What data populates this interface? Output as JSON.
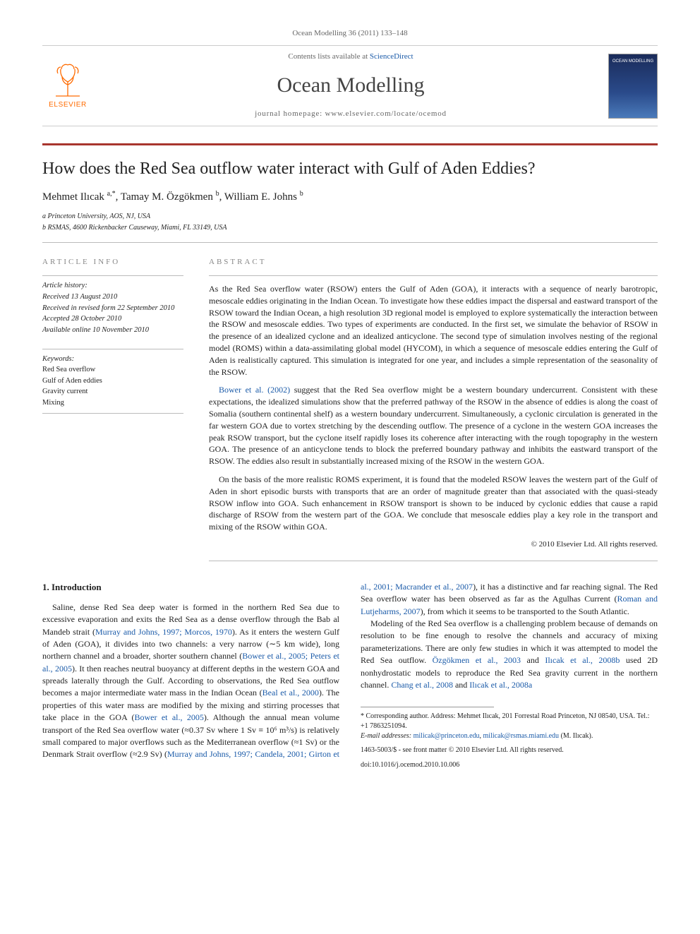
{
  "journal_ref": "Ocean Modelling 36 (2011) 133–148",
  "header": {
    "publisher_logo_text": "ELSEVIER",
    "contents_prefix": "Contents lists available at ",
    "contents_link": "ScienceDirect",
    "journal_name": "Ocean Modelling",
    "homepage_prefix": "journal homepage: ",
    "homepage_url": "www.elsevier.com/locate/ocemod",
    "cover_label": "OCEAN MODELLING"
  },
  "colors": {
    "rule_accent": "#a8352e",
    "link": "#1a5aa8",
    "logo": "#ff6b00",
    "light_rule": "#bbbbbb",
    "text": "#222222",
    "muted": "#666666"
  },
  "article": {
    "title": "How does the Red Sea outflow water interact with Gulf of Aden Eddies?",
    "authors_html": "Mehmet Ilıcak <sup>a,*</sup>, Tamay M. Özgökmen <sup>b</sup>, William E. Johns <sup>b</sup>",
    "affiliations": [
      "a Princeton University, AOS, NJ, USA",
      "b RSMAS, 4600 Rickenbacker Causeway, Miami, FL 33149, USA"
    ]
  },
  "info_heads": {
    "left": "ARTICLE INFO",
    "right": "ABSTRACT"
  },
  "history": {
    "label": "Article history:",
    "lines": [
      "Received 13 August 2010",
      "Received in revised form 22 September 2010",
      "Accepted 28 October 2010",
      "Available online 10 November 2010"
    ]
  },
  "keywords": {
    "label": "Keywords:",
    "items": [
      "Red Sea overflow",
      "Gulf of Aden eddies",
      "Gravity current",
      "Mixing"
    ]
  },
  "abstract": {
    "p1": "As the Red Sea overflow water (RSOW) enters the Gulf of Aden (GOA), it interacts with a sequence of nearly barotropic, mesoscale eddies originating in the Indian Ocean. To investigate how these eddies impact the dispersal and eastward transport of the RSOW toward the Indian Ocean, a high resolution 3D regional model is employed to explore systematically the interaction between the RSOW and mesoscale eddies. Two types of experiments are conducted. In the first set, we simulate the behavior of RSOW in the presence of an idealized cyclone and an idealized anticyclone. The second type of simulation involves nesting of the regional model (ROMS) within a data-assimilating global model (HYCOM), in which a sequence of mesoscale eddies entering the Gulf of Aden is realistically captured. This simulation is integrated for one year, and includes a simple representation of the seasonality of the RSOW.",
    "p2_cite": "Bower et al. (2002)",
    "p2_rest": " suggest that the Red Sea overflow might be a western boundary undercurrent. Consistent with these expectations, the idealized simulations show that the preferred pathway of the RSOW in the absence of eddies is along the coast of Somalia (southern continental shelf) as a western boundary undercurrent. Simultaneously, a cyclonic circulation is generated in the far western GOA due to vortex stretching by the descending outflow. The presence of a cyclone in the western GOA increases the peak RSOW transport, but the cyclone itself rapidly loses its coherence after interacting with the rough topography in the western GOA. The presence of an anticyclone tends to block the preferred boundary pathway and inhibits the eastward transport of the RSOW. The eddies also result in substantially increased mixing of the RSOW in the western GOA.",
    "p3": "On the basis of the more realistic ROMS experiment, it is found that the modeled RSOW leaves the western part of the Gulf of Aden in short episodic bursts with transports that are an order of magnitude greater than that associated with the quasi-steady RSOW inflow into GOA. Such enhancement in RSOW transport is shown to be induced by cyclonic eddies that cause a rapid discharge of RSOW from the western part of the GOA. We conclude that mesoscale eddies play a key role in the transport and mixing of the RSOW within GOA.",
    "copyright": "© 2010 Elsevier Ltd. All rights reserved."
  },
  "section1": {
    "heading": "1. Introduction",
    "para1_a": "Saline, dense Red Sea deep water is formed in the northern Red Sea due to excessive evaporation and exits the Red Sea as a dense overflow through the Bab al Mandeb strait (",
    "cite1": "Murray and Johns, 1997; Morcos, 1970",
    "para1_b": "). As it enters the western Gulf of Aden (GOA), it divides into two channels: a very narrow (∼5 km wide), long northern channel and a broader, shorter southern channel (",
    "cite2": "Bower et al., 2005; Peters et al., 2005",
    "para1_c": "). It then reaches neutral buoyancy at different depths in the western GOA and spreads laterally through the Gulf. According to observations, the Red Sea outflow becomes a major intermediate water mass in the Indian Ocean (",
    "cite3": "Beal et al., 2000",
    "para1_d": "). The properties of this water mass are modified by the mixing and stirring processes that take place in the GOA (",
    "cite4": "Bower et al., 2005",
    "para1_e": "). Although the annual mean volume transport of the Red Sea overflow water (≈0.37 Sv where 1 Sv ≡ 10⁶ m³/s) is relatively small compared to major overflows such as the Mediterranean overflow (≈1 Sv) or the Denmark Strait overflow (≈2.9 Sv) (",
    "cite5": "Murray and Johns, 1997; Candela, 2001; Girton et al., 2001; Macrander et al., 2007",
    "para1_f": "), it has a distinctive and far reaching signal. The Red Sea overflow water has been observed as far as the Agulhas Current (",
    "cite6": "Roman and Lutjeharms, 2007",
    "para1_g": "), from which it seems to be transported to the South Atlantic.",
    "para2_a": "Modeling of the Red Sea overflow is a challenging problem because of demands on resolution to be fine enough to resolve the channels and accuracy of mixing parameterizations. There are only few studies in which it was attempted to model the Red Sea outflow. ",
    "cite7": "Özgökmen et al., 2003",
    "para2_b": " and ",
    "cite8": "Ilıcak et al., 2008b",
    "para2_c": " used 2D nonhydrostatic models to reproduce the Red Sea gravity current in the northern channel. ",
    "cite9": "Chang et al., 2008",
    "para2_d": " and ",
    "cite10": "Ilıcak et al., 2008a",
    "para2_e": ""
  },
  "footnote": {
    "corr_label": "* Corresponding author. Address: Mehmet Ilıcak, 201 Forrestal Road Princeton, NJ 08540, USA. Tel.: +1 7863251094.",
    "email_label": "E-mail addresses: ",
    "email1": "milicak@princeton.edu",
    "email_sep": ", ",
    "email2": "milicak@rsmas.miami.edu",
    "email_owner": " (M. Ilıcak).",
    "issn_line": "1463-5003/$ - see front matter © 2010 Elsevier Ltd. All rights reserved.",
    "doi_line": "doi:10.1016/j.ocemod.2010.10.006"
  }
}
